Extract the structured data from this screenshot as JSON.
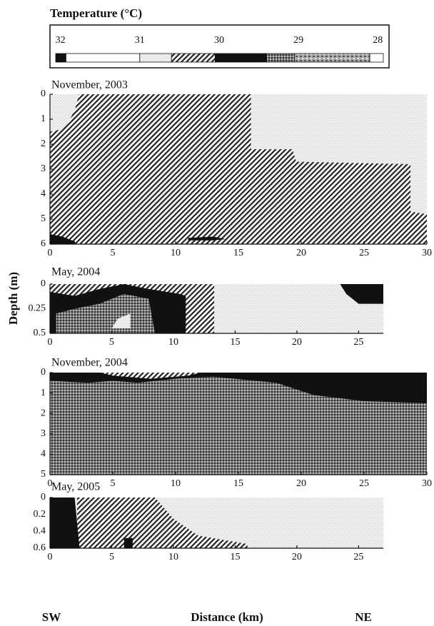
{
  "colorbar": {
    "title": "Temperature (°C)",
    "lim": [
      32.06,
      27.93
    ],
    "ticks": [
      32,
      31,
      30,
      29,
      28
    ],
    "bins": [
      32.06,
      31.93,
      31,
      30.6,
      30.05,
      29.4,
      29.05,
      28.1,
      27.93
    ],
    "patterns": [
      "black",
      "white",
      "dots",
      "hatch",
      "black",
      "grid",
      "mixed",
      "white"
    ]
  },
  "ylabel": "Depth (m)",
  "xlabel": "Distance (km)",
  "left_label": "SW",
  "right_label": "NE",
  "chart_data": [
    {
      "type": "section",
      "title": "November, 2003",
      "xlim": [
        0,
        30
      ],
      "ylim": [
        6,
        0
      ],
      "xticks": [
        0,
        5,
        10,
        15,
        20,
        25,
        30
      ],
      "yticks": [
        0,
        1,
        2,
        3,
        4,
        5,
        6
      ],
      "regions": [
        {
          "pattern": "dots",
          "points": [
            [
              0,
              0
            ],
            [
              30,
              0
            ],
            [
              30,
              6
            ],
            [
              0,
              6
            ]
          ]
        },
        {
          "pattern": "hatch",
          "points": [
            [
              0,
              1.5
            ],
            [
              1,
              1.4
            ],
            [
              1.5,
              1.1
            ],
            [
              2,
              0.6
            ],
            [
              2.3,
              0
            ],
            [
              16,
              0
            ],
            [
              16,
              2.2
            ],
            [
              19.3,
              2.2
            ],
            [
              19.6,
              2.7
            ],
            [
              28.7,
              2.8
            ],
            [
              28.7,
              4.7
            ],
            [
              30,
              4.8
            ],
            [
              30,
              6
            ],
            [
              0,
              6
            ]
          ]
        },
        {
          "pattern": "black",
          "points": [
            [
              0,
              5.6
            ],
            [
              1,
              5.7
            ],
            [
              2,
              5.9
            ],
            [
              2,
              6
            ],
            [
              0,
              6
            ]
          ]
        },
        {
          "pattern": "black",
          "points": [
            [
              11,
              5.75
            ],
            [
              13,
              5.7
            ],
            [
              14,
              5.8
            ],
            [
              13,
              5.85
            ],
            [
              11,
              5.85
            ]
          ]
        }
      ]
    },
    {
      "type": "section",
      "title": "May, 2004",
      "xlim": [
        0,
        27
      ],
      "ylim": [
        0.5,
        0
      ],
      "xticks": [
        0,
        5,
        10,
        15,
        20,
        25
      ],
      "yticks": [
        0,
        0.25,
        0.5
      ],
      "regions": [
        {
          "pattern": "dots",
          "points": [
            [
              0,
              0
            ],
            [
              27,
              0
            ],
            [
              27,
              0.5
            ],
            [
              0,
              0.5
            ]
          ]
        },
        {
          "pattern": "hatch",
          "points": [
            [
              0,
              0
            ],
            [
              13.3,
              0
            ],
            [
              13.3,
              0.5
            ],
            [
              0,
              0.5
            ]
          ]
        },
        {
          "pattern": "black",
          "points": [
            [
              0,
              0.08
            ],
            [
              2,
              0.12
            ],
            [
              4,
              0.05
            ],
            [
              6,
              0
            ],
            [
              8,
              0.05
            ],
            [
              10.5,
              0.1
            ],
            [
              11,
              0.12
            ],
            [
              11,
              0.5
            ],
            [
              0,
              0.5
            ]
          ]
        },
        {
          "pattern": "grid",
          "points": [
            [
              0.5,
              0.3
            ],
            [
              2,
              0.25
            ],
            [
              4,
              0.2
            ],
            [
              6,
              0.1
            ],
            [
              8,
              0.15
            ],
            [
              8.5,
              0.5
            ],
            [
              0.5,
              0.5
            ]
          ]
        },
        {
          "pattern": "dots",
          "points": [
            [
              5,
              0.45
            ],
            [
              5.5,
              0.35
            ],
            [
              6.5,
              0.3
            ],
            [
              6.5,
              0.45
            ]
          ]
        },
        {
          "pattern": "black",
          "points": [
            [
              23.5,
              0
            ],
            [
              27,
              0
            ],
            [
              27,
              0.2
            ],
            [
              25,
              0.2
            ],
            [
              24,
              0.1
            ]
          ]
        }
      ]
    },
    {
      "type": "section",
      "title": "November, 2004",
      "xlim": [
        0,
        30
      ],
      "ylim": [
        5,
        0
      ],
      "xticks": [
        0,
        5,
        10,
        15,
        20,
        25,
        30
      ],
      "yticks": [
        0,
        1,
        2,
        3,
        4,
        5
      ],
      "regions": [
        {
          "pattern": "grid",
          "points": [
            [
              0,
              0
            ],
            [
              30,
              0
            ],
            [
              30,
              5
            ],
            [
              0,
              5
            ]
          ]
        },
        {
          "pattern": "black",
          "points": [
            [
              0,
              0
            ],
            [
              30,
              0
            ],
            [
              30,
              1.5
            ],
            [
              25,
              1.4
            ],
            [
              21,
              1.1
            ],
            [
              18,
              0.5
            ],
            [
              13,
              0.2
            ],
            [
              10,
              0.3
            ],
            [
              7,
              0.5
            ],
            [
              5,
              0.4
            ],
            [
              3,
              0.5
            ],
            [
              0,
              0.4
            ]
          ]
        },
        {
          "pattern": "hatch",
          "points": [
            [
              4,
              0
            ],
            [
              12,
              0
            ],
            [
              11,
              0.15
            ],
            [
              8,
              0.3
            ],
            [
              5,
              0.15
            ]
          ]
        }
      ]
    },
    {
      "type": "section",
      "title": "May, 2005",
      "xlim": [
        0,
        27
      ],
      "ylim": [
        0.6,
        0
      ],
      "xticks": [
        0,
        5,
        10,
        15,
        20,
        25
      ],
      "yticks": [
        0,
        0.2,
        0.4,
        0.6
      ],
      "regions": [
        {
          "pattern": "dots",
          "points": [
            [
              0,
              0
            ],
            [
              27,
              0
            ],
            [
              27,
              0.6
            ],
            [
              0,
              0.6
            ]
          ]
        },
        {
          "pattern": "hatch",
          "points": [
            [
              2.2,
              0
            ],
            [
              8.5,
              0
            ],
            [
              10,
              0.25
            ],
            [
              12,
              0.45
            ],
            [
              16,
              0.55
            ],
            [
              16,
              0.6
            ],
            [
              2.2,
              0.6
            ]
          ]
        },
        {
          "pattern": "black",
          "points": [
            [
              0,
              0
            ],
            [
              2,
              0
            ],
            [
              2.4,
              0.6
            ],
            [
              0,
              0.6
            ]
          ]
        },
        {
          "pattern": "black",
          "points": [
            [
              6,
              0.48
            ],
            [
              6.7,
              0.48
            ],
            [
              6.7,
              0.6
            ],
            [
              6,
              0.6
            ]
          ]
        }
      ]
    }
  ]
}
